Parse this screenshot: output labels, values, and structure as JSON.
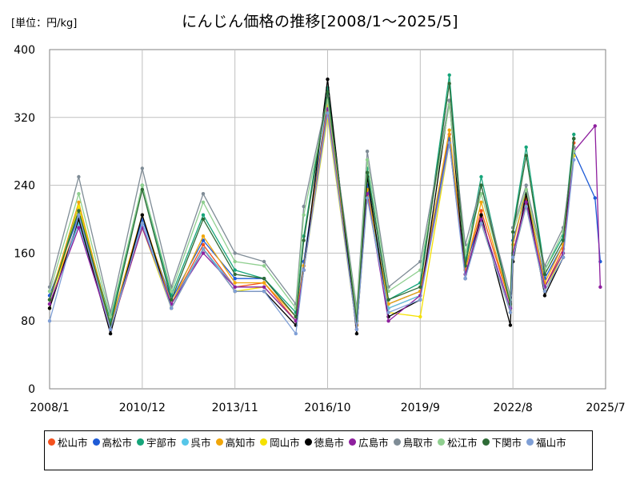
{
  "unit_label": "[単位：円/kg]",
  "chart_data": {
    "type": "line",
    "title": "にんじん価格の推移[2008/1～2025/5]",
    "xlabel": "",
    "ylabel": "",
    "ylim": [
      0,
      400
    ],
    "yticks": [
      "0",
      "80",
      "160",
      "240",
      "320",
      "400"
    ],
    "xticks": [
      "2008/1",
      "2010/12",
      "2013/11",
      "2016/10",
      "2019/9",
      "2022/8",
      "2025/7"
    ],
    "grid": true,
    "legend_position": "bottom",
    "sample_months": [
      "2008/1",
      "2008/12",
      "2009/12",
      "2010/12",
      "2011/11",
      "2012/11",
      "2013/11",
      "2014/10",
      "2015/10",
      "2016/1",
      "2016/10",
      "2017/9",
      "2018/1",
      "2018/9",
      "2019/9",
      "2020/8",
      "2021/2",
      "2021/8",
      "2022/7",
      "2022/8",
      "2023/1",
      "2023/8",
      "2024/3",
      "2024/7",
      "2025/3",
      "2025/5"
    ],
    "series": [
      {
        "name": "松山市",
        "color": "#f4511e",
        "values": [
          100,
          200,
          70,
          190,
          100,
          170,
          120,
          125,
          80,
          145,
          335,
          70,
          235,
          95,
          110,
          300,
          140,
          210,
          100,
          160,
          225,
          120,
          165,
          290,
          null,
          null
        ]
      },
      {
        "name": "高松市",
        "color": "#1e5bd6",
        "values": [
          110,
          205,
          75,
          200,
          105,
          175,
          130,
          130,
          85,
          150,
          340,
          75,
          240,
          100,
          115,
          295,
          145,
          200,
          95,
          175,
          230,
          130,
          170,
          280,
          225,
          150
        ]
      },
      {
        "name": "宇部市",
        "color": "#16a57a",
        "values": [
          105,
          215,
          80,
          240,
          110,
          205,
          140,
          130,
          90,
          180,
          355,
          80,
          260,
          105,
          125,
          370,
          150,
          250,
          100,
          190,
          285,
          140,
          180,
          300,
          null,
          null
        ]
      },
      {
        "name": "呉市",
        "color": "#56c6e8",
        "values": [
          100,
          195,
          70,
          195,
          100,
          165,
          120,
          120,
          80,
          140,
          330,
          70,
          230,
          95,
          110,
          290,
          135,
          200,
          95,
          160,
          220,
          120,
          160,
          280,
          null,
          null
        ]
      },
      {
        "name": "高知市",
        "color": "#f0a60a",
        "values": [
          105,
          220,
          75,
          205,
          100,
          180,
          125,
          125,
          85,
          145,
          335,
          75,
          235,
          100,
          115,
          305,
          140,
          220,
          100,
          170,
          235,
          125,
          170,
          285,
          null,
          null
        ]
      },
      {
        "name": "岡山市",
        "color": "#f5e100",
        "values": [
          95,
          215,
          70,
          190,
          95,
          165,
          115,
          120,
          80,
          140,
          320,
          70,
          225,
          90,
          85,
          290,
          135,
          195,
          90,
          155,
          215,
          115,
          160,
          275,
          null,
          null
        ]
      },
      {
        "name": "徳島市",
        "color": "#000000",
        "values": [
          95,
          200,
          65,
          205,
          95,
          165,
          115,
          115,
          75,
          140,
          365,
          65,
          250,
          85,
          105,
          340,
          130,
          205,
          75,
          150,
          230,
          110,
          155,
          295,
          null,
          null
        ]
      },
      {
        "name": "広島市",
        "color": "#8e1f9e",
        "values": [
          100,
          190,
          70,
          190,
          100,
          160,
          120,
          120,
          80,
          140,
          330,
          70,
          230,
          80,
          110,
          290,
          135,
          200,
          95,
          160,
          220,
          120,
          160,
          280,
          310,
          120
        ]
      },
      {
        "name": "鳥取市",
        "color": "#7f8c96",
        "values": [
          120,
          250,
          90,
          260,
          120,
          230,
          160,
          150,
          100,
          215,
          345,
          95,
          280,
          120,
          150,
          340,
          170,
          240,
          110,
          190,
          240,
          145,
          190,
          285,
          null,
          null
        ]
      },
      {
        "name": "松江市",
        "color": "#8fcf8f",
        "values": [
          115,
          230,
          85,
          240,
          115,
          220,
          150,
          145,
          95,
          205,
          340,
          90,
          270,
          115,
          140,
          335,
          160,
          230,
          105,
          185,
          235,
          140,
          185,
          280,
          null,
          null
        ]
      },
      {
        "name": "下関市",
        "color": "#2e6b36",
        "values": [
          105,
          210,
          75,
          235,
          105,
          200,
          135,
          130,
          85,
          175,
          350,
          80,
          255,
          105,
          120,
          360,
          145,
          240,
          100,
          185,
          275,
          135,
          175,
          295,
          null,
          null
        ]
      },
      {
        "name": "福山市",
        "color": "#7f9fd6",
        "values": [
          80,
          205,
          70,
          195,
          95,
          165,
          115,
          115,
          65,
          140,
          325,
          70,
          225,
          90,
          105,
          290,
          130,
          195,
          90,
          155,
          215,
          115,
          155,
          270,
          null,
          null
        ]
      }
    ]
  }
}
